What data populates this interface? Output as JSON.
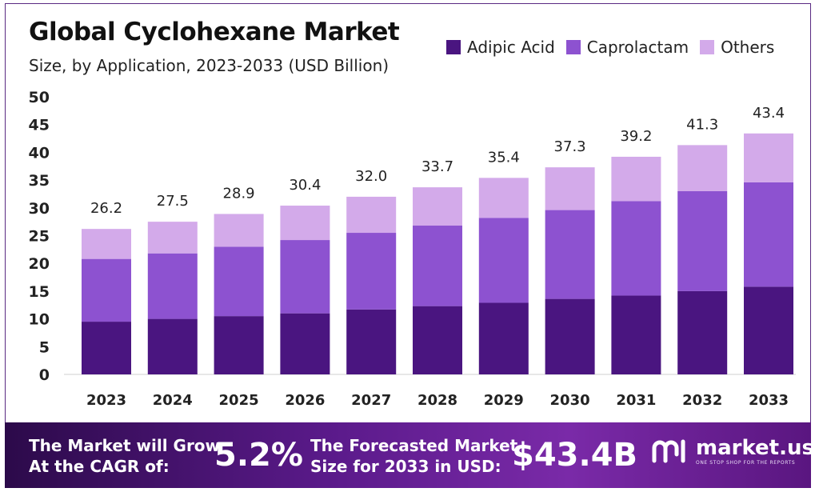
{
  "header": {
    "title": "Global Cyclohexane Market",
    "subtitle": "Size, by Application, 2023-2033 (USD Billion)"
  },
  "colors": {
    "adipic_acid": "#4a1580",
    "caprolactam": "#8d52d0",
    "others": "#d3aaea",
    "border": "#5a2a82"
  },
  "chart_data": {
    "type": "bar",
    "stacked": true,
    "categories": [
      "2023",
      "2024",
      "2025",
      "2026",
      "2027",
      "2028",
      "2029",
      "2030",
      "2031",
      "2032",
      "2033"
    ],
    "series": [
      {
        "name": "Adipic Acid",
        "values": [
          9.5,
          10.0,
          10.5,
          11.0,
          11.7,
          12.3,
          12.9,
          13.6,
          14.2,
          15.0,
          15.8
        ]
      },
      {
        "name": "Caprolactam",
        "values": [
          11.3,
          11.8,
          12.5,
          13.2,
          13.8,
          14.5,
          15.3,
          16.0,
          17.0,
          18.0,
          18.8
        ]
      },
      {
        "name": "Others",
        "values": [
          5.4,
          5.7,
          5.9,
          6.2,
          6.5,
          6.9,
          7.2,
          7.7,
          8.0,
          8.3,
          8.8
        ]
      }
    ],
    "totals": [
      "26.2",
      "27.5",
      "28.9",
      "30.4",
      "32.0",
      "33.7",
      "35.4",
      "37.3",
      "39.2",
      "41.3",
      "43.4"
    ],
    "yticks": [
      "0",
      "5",
      "10",
      "15",
      "20",
      "25",
      "30",
      "35",
      "40",
      "45",
      "50"
    ],
    "ylim": [
      0,
      50
    ],
    "grid": false,
    "legend_position": "top-right"
  },
  "footer": {
    "cagr_label_line1": "The Market will Grow",
    "cagr_label_line2": "At the CAGR of:",
    "cagr_value": "5.2%",
    "forecast_label_line1": "The Forecasted Market",
    "forecast_label_line2": "Size for 2033 in USD:",
    "forecast_value": "$43.4B",
    "logo_icon": "market-us-logo-icon",
    "logo_name": "market.us",
    "logo_tagline": "ONE STOP SHOP FOR THE REPORTS"
  }
}
